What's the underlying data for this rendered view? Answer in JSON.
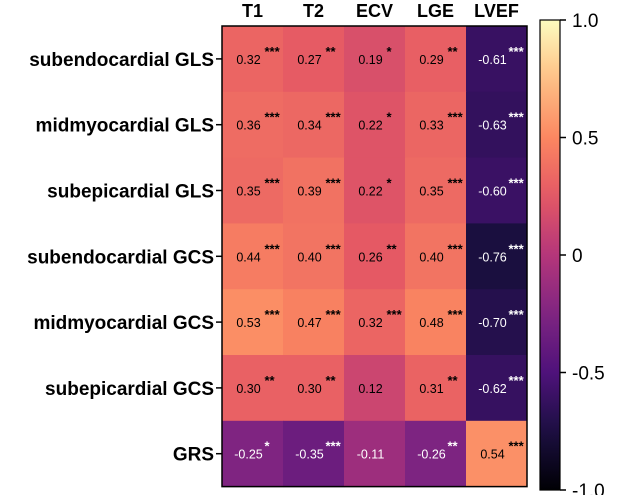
{
  "chart_data": {
    "type": "heatmap",
    "columns": [
      "T1",
      "T2",
      "ECV",
      "LGE",
      "LVEF"
    ],
    "rows": [
      "subendocardial GLS",
      "midmyocardial GLS",
      "subepicardial GLS",
      "subendocardial GCS",
      "midmyocardial GCS",
      "subepicardial GCS",
      "GRS"
    ],
    "values": [
      [
        0.32,
        0.27,
        0.19,
        0.29,
        -0.61
      ],
      [
        0.36,
        0.34,
        0.22,
        0.33,
        -0.63
      ],
      [
        0.35,
        0.39,
        0.22,
        0.35,
        -0.6
      ],
      [
        0.44,
        0.4,
        0.26,
        0.4,
        -0.76
      ],
      [
        0.53,
        0.47,
        0.32,
        0.48,
        -0.7
      ],
      [
        0.3,
        0.3,
        0.12,
        0.31,
        -0.62
      ],
      [
        -0.25,
        -0.35,
        -0.11,
        -0.26,
        0.54
      ]
    ],
    "labels": [
      [
        "0.32",
        "0.27",
        "0.19",
        "0.29",
        "-0.61"
      ],
      [
        "0.36",
        "0.34",
        "0.22",
        "0.33",
        "-0.63"
      ],
      [
        "0.35",
        "0.39",
        "0.22",
        "0.35",
        "-0.60"
      ],
      [
        "0.44",
        "0.40",
        "0.26",
        "0.40",
        "-0.76"
      ],
      [
        "0.53",
        "0.47",
        "0.32",
        "0.48",
        "-0.70"
      ],
      [
        "0.30",
        "0.30",
        "0.12",
        "0.31",
        "-0.62"
      ],
      [
        "-0.25",
        "-0.35",
        "-0.11",
        "-0.26",
        "0.54"
      ]
    ],
    "significance": [
      [
        "***",
        "**",
        "*",
        "**",
        "***"
      ],
      [
        "***",
        "***",
        "*",
        "***",
        "***"
      ],
      [
        "***",
        "***",
        "*",
        "***",
        "***"
      ],
      [
        "***",
        "***",
        "**",
        "***",
        "***"
      ],
      [
        "***",
        "***",
        "***",
        "***",
        "***"
      ],
      [
        "**",
        "**",
        "",
        "**",
        "***"
      ],
      [
        "*",
        "***",
        "",
        "**",
        "***"
      ]
    ],
    "colorscale": "magma",
    "zlim": [
      -1,
      1
    ],
    "colorbar_ticks": [
      "1.0",
      "0.5",
      "0",
      "-0.5",
      "-1.0"
    ],
    "colorbar_tick_values": [
      1,
      0.5,
      0,
      -0.5,
      -1
    ]
  }
}
